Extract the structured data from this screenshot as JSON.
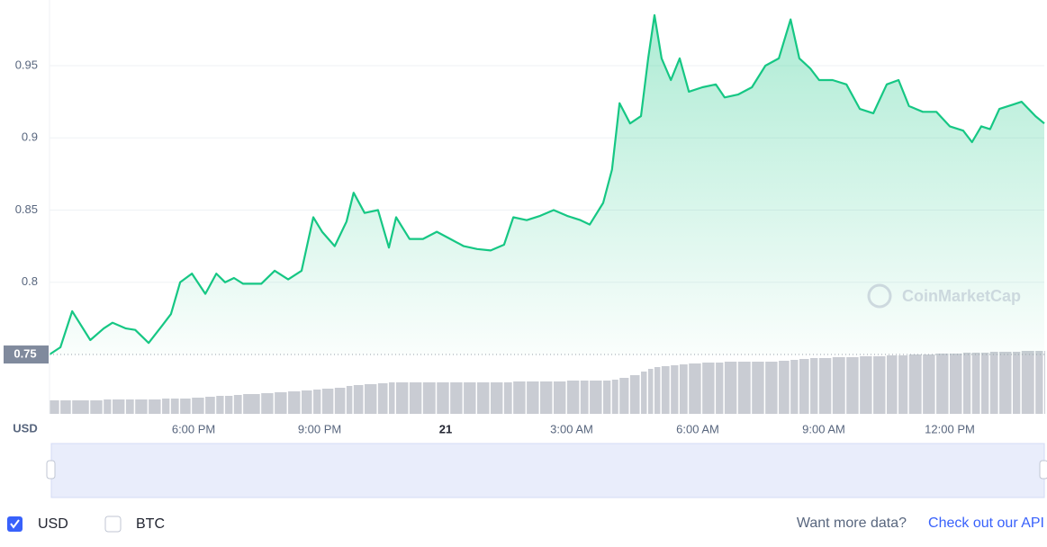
{
  "chart_data": {
    "type": "line",
    "y_axis_label": "USD",
    "watermark": "CoinMarketCap",
    "x": [
      14.57,
      14.83,
      15.11,
      15.54,
      15.86,
      16.07,
      16.39,
      16.61,
      16.93,
      17.25,
      17.46,
      17.68,
      17.96,
      18.28,
      18.54,
      18.75,
      18.96,
      19.18,
      19.61,
      19.93,
      20.25,
      20.57,
      20.85,
      21.06,
      21.36,
      21.64,
      21.81,
      22.07,
      22.39,
      22.65,
      22.82,
      23.14,
      23.46,
      23.79,
      24.11,
      24.43,
      24.75,
      25.07,
      25.39,
      25.61,
      25.93,
      26.25,
      26.57,
      26.89,
      27.21,
      27.43,
      27.75,
      27.96,
      28.14,
      28.39,
      28.65,
      28.82,
      28.97,
      29.14,
      29.36,
      29.57,
      29.79,
      30.11,
      30.43,
      30.64,
      30.96,
      31.29,
      31.61,
      31.93,
      32.21,
      32.42,
      32.68,
      32.89,
      33.21,
      33.54,
      33.86,
      34.18,
      34.5,
      34.78,
      35.03,
      35.36,
      35.68,
      36.0,
      36.32,
      36.53,
      36.75,
      36.96,
      37.18,
      37.5,
      37.71,
      38.04,
      38.25
    ],
    "series": [
      {
        "color": "#16c784",
        "values": [
          0.75,
          0.755,
          0.78,
          0.76,
          0.768,
          0.772,
          0.768,
          0.767,
          0.758,
          0.77,
          0.778,
          0.8,
          0.806,
          0.792,
          0.806,
          0.8,
          0.803,
          0.799,
          0.799,
          0.808,
          0.802,
          0.808,
          0.845,
          0.835,
          0.825,
          0.842,
          0.862,
          0.848,
          0.85,
          0.824,
          0.845,
          0.83,
          0.83,
          0.835,
          0.83,
          0.825,
          0.823,
          0.822,
          0.826,
          0.845,
          0.843,
          0.846,
          0.85,
          0.846,
          0.843,
          0.84,
          0.855,
          0.878,
          0.924,
          0.91,
          0.915,
          0.955,
          0.985,
          0.955,
          0.94,
          0.955,
          0.932,
          0.935,
          0.937,
          0.928,
          0.93,
          0.935,
          0.95,
          0.955,
          0.982,
          0.955,
          0.948,
          0.94,
          0.94,
          0.937,
          0.92,
          0.917,
          0.937,
          0.94,
          0.922,
          0.918,
          0.918,
          0.908,
          0.905,
          0.897,
          0.908,
          0.906,
          0.92,
          0.923,
          0.925,
          0.915,
          0.91
        ]
      }
    ],
    "volume": {
      "color": "#c9ccd3",
      "values": [
        15,
        15,
        15,
        15,
        16,
        16,
        16,
        16,
        16,
        17,
        17,
        17,
        18,
        19,
        20,
        20,
        21,
        22,
        23,
        24,
        25,
        26,
        27,
        28,
        29,
        31,
        32,
        33,
        34,
        35,
        35,
        35,
        35,
        35,
        35,
        35,
        35,
        35,
        35,
        36,
        36,
        36,
        36,
        37,
        37,
        37,
        37,
        38,
        40,
        43,
        47,
        50,
        52,
        53,
        54,
        55,
        56,
        57,
        57,
        58,
        58,
        58,
        58,
        59,
        60,
        61,
        62,
        62,
        63,
        63,
        64,
        64,
        65,
        65,
        66,
        66,
        67,
        67,
        68,
        68,
        68,
        69,
        69,
        69,
        70,
        70,
        70
      ]
    },
    "xlim": [
      14.57,
      38.25
    ],
    "xticks": [
      {
        "value": 18,
        "label": "6:00 PM"
      },
      {
        "value": 21,
        "label": "9:00 PM"
      },
      {
        "value": 24,
        "label": "21"
      },
      {
        "value": 27,
        "label": "3:00 AM"
      },
      {
        "value": 30,
        "label": "6:00 AM"
      },
      {
        "value": 33,
        "label": "9:00 AM"
      },
      {
        "value": 36,
        "label": "12:00 PM"
      }
    ],
    "ylim": [
      0.7494,
      0.9861
    ],
    "yticks": [
      0.8,
      0.85,
      0.9,
      0.95
    ],
    "grid": true,
    "reference_value": 0.75
  },
  "controls": {
    "currencies": [
      {
        "label": "USD",
        "checked": true
      },
      {
        "label": "BTC",
        "checked": false
      }
    ],
    "footer_text": "Want more data?",
    "footer_link": "Check out our API"
  }
}
